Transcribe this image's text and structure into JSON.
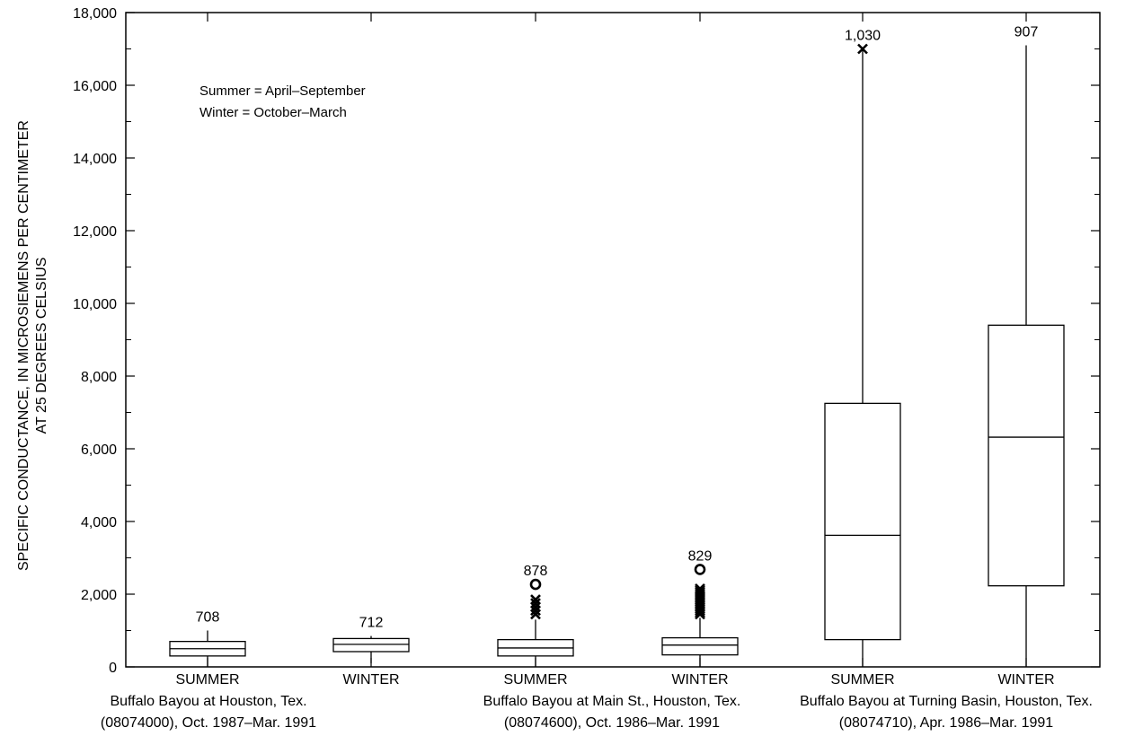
{
  "chart_data": {
    "type": "box",
    "ylabel_line1": "SPECIFIC CONDUCTANCE, IN MICROSIEMENS PER CENTIMETER",
    "ylabel_line2": "AT 25 DEGREES CELSIUS",
    "ylim": [
      0,
      18000
    ],
    "yticks": [
      0,
      2000,
      4000,
      6000,
      8000,
      10000,
      12000,
      14000,
      16000,
      18000
    ],
    "ytick_labels": [
      "0",
      "2,000",
      "4,000",
      "6,000",
      "8,000",
      "10,000",
      "12,000",
      "14,000",
      "16,000",
      "18,000"
    ],
    "legend": [
      "Summer = April–September",
      "Winter = October–March"
    ],
    "groups": [
      {
        "line1": "Buffalo Bayou at Houston, Tex.",
        "line2": "(08074000), Oct. 1987–Mar. 1991"
      },
      {
        "line1": "Buffalo Bayou at Main St., Houston, Tex.",
        "line2": "(08074600), Oct. 1986–Mar. 1991"
      },
      {
        "line1": "Buffalo Bayou at Turning Basin, Houston, Tex.",
        "line2": "(08074710), Apr. 1986–Mar. 1991"
      }
    ],
    "boxes": [
      {
        "label": "SUMMER",
        "n": "708",
        "group": 0,
        "whisker_low": 0,
        "q1": 300,
        "median": 500,
        "q3": 700,
        "whisker_high": 1000,
        "outliers_x": [],
        "outliers_o": []
      },
      {
        "label": "WINTER",
        "n": "712",
        "group": 0,
        "whisker_low": 100,
        "q1": 420,
        "median": 620,
        "q3": 780,
        "whisker_high": 850,
        "outliers_x": [],
        "outliers_o": []
      },
      {
        "label": "SUMMER",
        "n": "878",
        "group": 1,
        "whisker_low": 0,
        "q1": 300,
        "median": 520,
        "q3": 750,
        "whisker_high": 1300,
        "outliers_x": [
          1450,
          1550,
          1650,
          1750,
          1850
        ],
        "outliers_o": [
          2270
        ]
      },
      {
        "label": "WINTER",
        "n": "829",
        "group": 1,
        "whisker_low": 0,
        "q1": 330,
        "median": 600,
        "q3": 800,
        "whisker_high": 1350,
        "outliers_x": [
          1450,
          1500,
          1550,
          1600,
          1650,
          1700,
          1750,
          1800,
          1850,
          1900,
          1950,
          2000,
          2050,
          2100,
          2150
        ],
        "outliers_o": [
          2680
        ]
      },
      {
        "label": "SUMMER",
        "n": "1,030",
        "group": 2,
        "whisker_low": 0,
        "q1": 750,
        "median": 3620,
        "q3": 7250,
        "whisker_high": 17000,
        "outliers_x": [
          17000
        ],
        "outliers_o": []
      },
      {
        "label": "WINTER",
        "n": "907",
        "group": 2,
        "whisker_low": 0,
        "q1": 2230,
        "median": 6320,
        "q3": 9400,
        "whisker_high": 17100,
        "outliers_x": [],
        "outliers_o": []
      }
    ]
  }
}
